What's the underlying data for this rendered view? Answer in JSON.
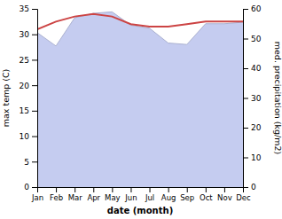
{
  "chart_data": {
    "type": "line",
    "categories": [
      "Jan",
      "Feb",
      "Mar",
      "Apr",
      "May",
      "Jun",
      "Jul",
      "Aug",
      "Sep",
      "Oct",
      "Nov",
      "Dec"
    ],
    "series": [
      {
        "type": "line",
        "color": "#cc4444",
        "values": [
          31.0,
          32.5,
          33.5,
          34.0,
          33.5,
          32.0,
          31.5,
          31.5,
          32.0,
          32.5,
          32.5,
          32.5
        ]
      },
      {
        "type": "area",
        "axis": "y2",
        "color": "#c5ccf0",
        "values": [
          52.0,
          47.5,
          57.0,
          58.5,
          59.0,
          54.5,
          53.5,
          48.5,
          48.0,
          55.0,
          55.0,
          55.5
        ]
      }
    ],
    "xlabel": "date (month)",
    "ylabel": "max temp (C)",
    "y2label": "med. precipitation (kg/m2)",
    "ylim": [
      0,
      35
    ],
    "yticks": [
      0,
      5,
      10,
      15,
      20,
      25,
      30,
      35
    ],
    "y2lim": [
      0,
      60
    ],
    "y2ticks": [
      0,
      10,
      20,
      30,
      40,
      50,
      60
    ],
    "grid": false
  }
}
